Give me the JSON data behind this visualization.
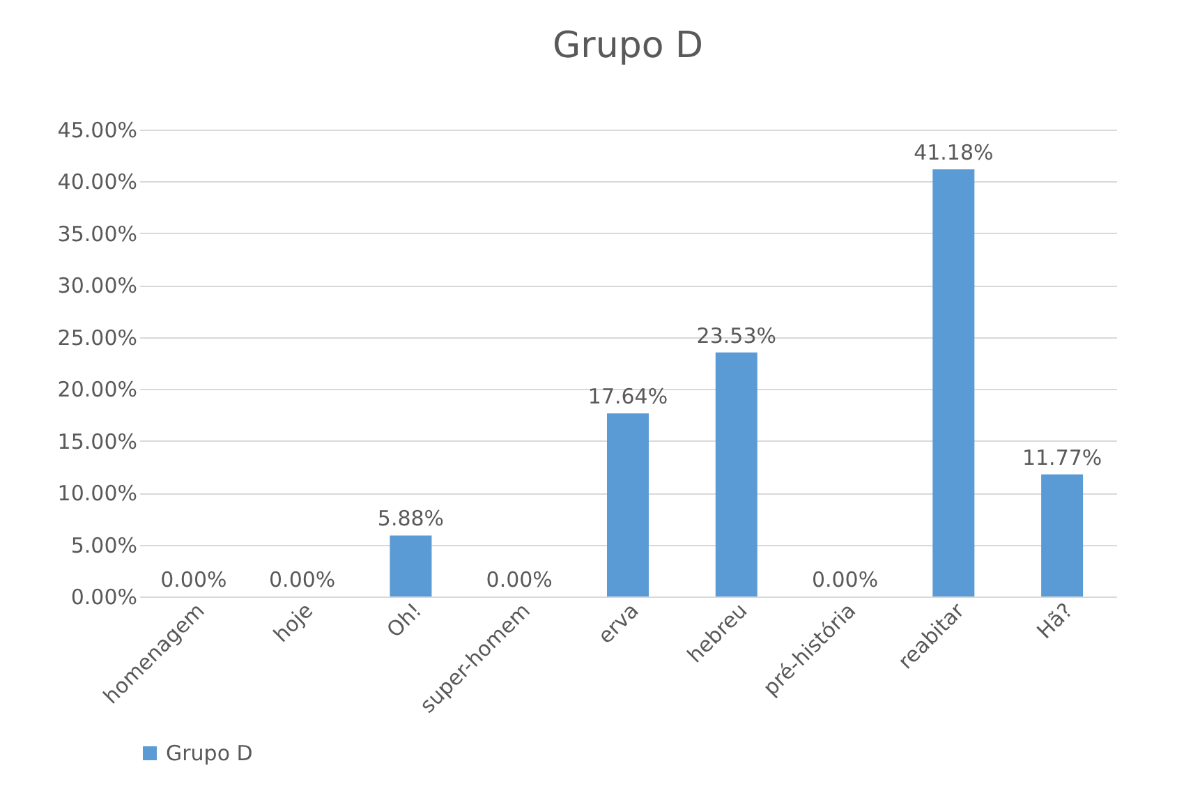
{
  "chart_data": {
    "type": "bar",
    "title": "Grupo D",
    "categories": [
      "homenagem",
      "hoje",
      "Oh!",
      "super-homem",
      "erva",
      "hebreu",
      "pré-história",
      "reabitar",
      "Hã?"
    ],
    "series": [
      {
        "name": "Grupo D",
        "color": "#5b9bd5",
        "values": [
          0,
          0,
          5.88,
          0,
          17.64,
          23.53,
          0,
          41.18,
          11.77
        ],
        "value_labels": [
          "0.00%",
          "0.00%",
          "5.88%",
          "0.00%",
          "17.64%",
          "23.53%",
          "0.00%",
          "41.18%",
          "11.77%"
        ]
      }
    ],
    "ylim": [
      0,
      45
    ],
    "yticks": [
      {
        "value": 0,
        "label": "0.00%"
      },
      {
        "value": 5,
        "label": "5.00%"
      },
      {
        "value": 10,
        "label": "10.00%"
      },
      {
        "value": 15,
        "label": "15.00%"
      },
      {
        "value": 20,
        "label": "20.00%"
      },
      {
        "value": 25,
        "label": "25.00%"
      },
      {
        "value": 30,
        "label": "30.00%"
      },
      {
        "value": 35,
        "label": "35.00%"
      },
      {
        "value": 40,
        "label": "40.00%"
      },
      {
        "value": 45,
        "label": "45.00%"
      }
    ],
    "grid": "y",
    "legend": "bottom"
  }
}
